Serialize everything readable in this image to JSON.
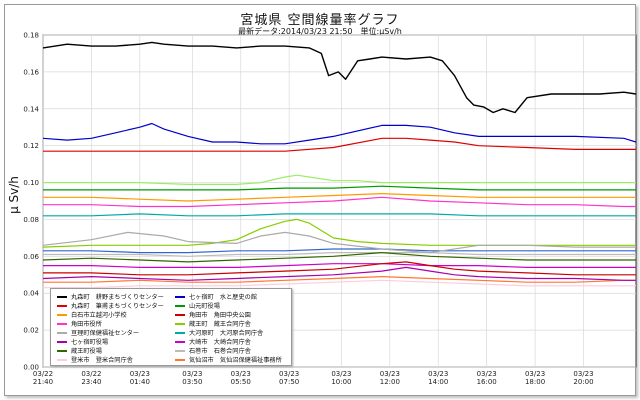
{
  "title": "宮城県 空間線量率グラフ",
  "subtitle": "最新データ:2014/03/23 21:50　単位:μSv/h",
  "chart_data": {
    "type": "line",
    "ylabel": "μ Sv/h",
    "ylim": [
      0,
      0.18
    ],
    "yticks": [
      "0.00",
      "0.02",
      "0.04",
      "0.06",
      "0.08",
      "0.10",
      "0.12",
      "0.14",
      "0.16",
      "0.18"
    ],
    "xlim": [
      0,
      24.5
    ],
    "xticks": [
      {
        "t": 0,
        "date": "03/22",
        "time": "21:40"
      },
      {
        "t": 2,
        "date": "03/22",
        "time": "23:40"
      },
      {
        "t": 4,
        "date": "03/23",
        "time": "01:40"
      },
      {
        "t": 6.17,
        "date": "03/23",
        "time": "03:50"
      },
      {
        "t": 8.17,
        "date": "03/23",
        "time": "05:50"
      },
      {
        "t": 10.17,
        "date": "03/23",
        "time": "07:50"
      },
      {
        "t": 12.33,
        "date": "03/23",
        "time": "10:00"
      },
      {
        "t": 14.33,
        "date": "03/23",
        "time": "12:00"
      },
      {
        "t": 16.33,
        "date": "03/23",
        "time": "14:00"
      },
      {
        "t": 18.33,
        "date": "03/23",
        "time": "16:00"
      },
      {
        "t": 20.33,
        "date": "03/23",
        "time": "18:00"
      },
      {
        "t": 22.33,
        "date": "03/23",
        "time": "20:00"
      }
    ],
    "grid": true,
    "legend_position": "bottom-left",
    "series": [
      {
        "name": "丸森町　耕野まちづくりセンター",
        "color": "#000000",
        "x": [
          0,
          1,
          2,
          3,
          4,
          4.5,
          5,
          6,
          7,
          8,
          9,
          10,
          11,
          11.5,
          11.8,
          12.2,
          12.5,
          13,
          13.5,
          14,
          15,
          16,
          16.5,
          17,
          17.5,
          17.8,
          18.2,
          18.6,
          19,
          19.5,
          20,
          21,
          22,
          23,
          24,
          24.5
        ],
        "values": [
          0.173,
          0.175,
          0.174,
          0.174,
          0.175,
          0.176,
          0.175,
          0.174,
          0.174,
          0.173,
          0.174,
          0.174,
          0.173,
          0.17,
          0.158,
          0.16,
          0.156,
          0.166,
          0.167,
          0.168,
          0.167,
          0.168,
          0.166,
          0.158,
          0.146,
          0.142,
          0.141,
          0.138,
          0.14,
          0.138,
          0.146,
          0.148,
          0.148,
          0.148,
          0.149,
          0.148
        ]
      },
      {
        "name": "丸森町　筆甫まちづくりセンター",
        "color": "#dd0000",
        "x": [
          0,
          2,
          4,
          6,
          8,
          10,
          12,
          14,
          15,
          16,
          17,
          18,
          20,
          22,
          24,
          24.5
        ],
        "values": [
          0.117,
          0.117,
          0.117,
          0.117,
          0.117,
          0.117,
          0.119,
          0.124,
          0.124,
          0.123,
          0.122,
          0.12,
          0.119,
          0.118,
          0.118,
          0.118
        ]
      },
      {
        "name": "白石市立越河小学校",
        "color": "#ff9900",
        "x": [
          0,
          2,
          4,
          6,
          8,
          10,
          12,
          14,
          16,
          18,
          20,
          22,
          24,
          24.5
        ],
        "values": [
          0.092,
          0.092,
          0.091,
          0.09,
          0.091,
          0.092,
          0.093,
          0.094,
          0.093,
          0.092,
          0.092,
          0.092,
          0.092,
          0.092
        ]
      },
      {
        "name": "角田市役所",
        "color": "#ff33cc",
        "x": [
          0,
          2,
          4,
          6,
          8,
          10,
          12,
          14,
          16,
          18,
          20,
          22,
          24,
          24.5
        ],
        "values": [
          0.088,
          0.088,
          0.087,
          0.087,
          0.088,
          0.089,
          0.09,
          0.092,
          0.09,
          0.089,
          0.088,
          0.088,
          0.087,
          0.087
        ]
      },
      {
        "name": "亘理町保健福祉センター",
        "color": "#aaaaaa",
        "x": [
          0,
          2,
          3.5,
          5,
          6,
          8,
          9,
          10,
          11,
          12,
          14,
          16,
          18,
          20,
          22,
          24,
          24.5
        ],
        "values": [
          0.066,
          0.069,
          0.073,
          0.071,
          0.068,
          0.067,
          0.071,
          0.073,
          0.071,
          0.067,
          0.064,
          0.062,
          0.066,
          0.066,
          0.065,
          0.065,
          0.065
        ]
      },
      {
        "name": "七ヶ宿町役場",
        "color": "#aa00aa",
        "x": [
          0,
          2,
          4,
          6,
          8,
          10,
          12,
          14,
          15,
          16,
          17,
          18,
          20,
          22,
          24,
          24.5
        ],
        "values": [
          0.048,
          0.049,
          0.048,
          0.047,
          0.048,
          0.049,
          0.05,
          0.052,
          0.054,
          0.052,
          0.05,
          0.049,
          0.048,
          0.048,
          0.047,
          0.047
        ]
      },
      {
        "name": "蔵王町役場",
        "color": "#336600",
        "x": [
          0,
          2,
          4,
          6,
          8,
          10,
          12,
          14,
          16,
          18,
          20,
          22,
          24,
          24.5
        ],
        "values": [
          0.058,
          0.059,
          0.058,
          0.057,
          0.058,
          0.059,
          0.06,
          0.062,
          0.06,
          0.059,
          0.058,
          0.058,
          0.058,
          0.058
        ]
      },
      {
        "name": "登米市　登米合同庁舎",
        "color": "#ffccdd",
        "x": [
          0,
          2,
          4,
          6,
          8,
          10,
          12,
          14,
          16,
          18,
          20,
          22,
          24,
          24.5
        ],
        "values": [
          0.043,
          0.043,
          0.044,
          0.044,
          0.044,
          0.045,
          0.046,
          0.047,
          0.046,
          0.045,
          0.044,
          0.044,
          0.044,
          0.044
        ]
      },
      {
        "name": "七ヶ宿町　水と歴史の館",
        "color": "#0000cc",
        "x": [
          0,
          1,
          2,
          3,
          4,
          4.5,
          5,
          6,
          7,
          8,
          9,
          10,
          11,
          12,
          14,
          15,
          16,
          17,
          18,
          20,
          22,
          24,
          24.5
        ],
        "values": [
          0.124,
          0.123,
          0.124,
          0.127,
          0.13,
          0.132,
          0.129,
          0.125,
          0.122,
          0.122,
          0.121,
          0.121,
          0.123,
          0.125,
          0.131,
          0.131,
          0.13,
          0.127,
          0.125,
          0.125,
          0.125,
          0.124,
          0.122
        ]
      },
      {
        "name": "山元町役場",
        "color": "#009900",
        "x": [
          0,
          2,
          4,
          6,
          8,
          10,
          12,
          14,
          16,
          18,
          20,
          22,
          24,
          24.5
        ],
        "values": [
          0.096,
          0.096,
          0.096,
          0.096,
          0.096,
          0.097,
          0.097,
          0.098,
          0.097,
          0.096,
          0.096,
          0.096,
          0.096,
          0.096
        ]
      },
      {
        "name": "角田市　角田中央公園",
        "color": "#cc0000",
        "x": [
          0,
          2,
          4,
          6,
          8,
          10,
          12,
          14,
          15,
          16,
          17,
          18,
          20,
          22,
          24,
          24.5
        ],
        "values": [
          0.051,
          0.051,
          0.05,
          0.05,
          0.051,
          0.052,
          0.053,
          0.056,
          0.057,
          0.055,
          0.053,
          0.052,
          0.051,
          0.05,
          0.05,
          0.05
        ]
      },
      {
        "name": "蔵王町　蔵王合同庁舎",
        "color": "#88cc00",
        "x": [
          0,
          2,
          4,
          6,
          7,
          8,
          9,
          10,
          10.5,
          11,
          11.5,
          12,
          13,
          14,
          16,
          18,
          20,
          22,
          24,
          24.5
        ],
        "values": [
          0.065,
          0.066,
          0.066,
          0.066,
          0.067,
          0.069,
          0.075,
          0.079,
          0.08,
          0.078,
          0.074,
          0.07,
          0.068,
          0.067,
          0.066,
          0.066,
          0.066,
          0.066,
          0.066,
          0.066
        ]
      },
      {
        "name": "大河原町　大河原合同庁舎",
        "color": "#00aaaa",
        "x": [
          0,
          2,
          4,
          6,
          8,
          10,
          12,
          14,
          16,
          18,
          20,
          22,
          24,
          24.5
        ],
        "values": [
          0.082,
          0.082,
          0.083,
          0.082,
          0.082,
          0.083,
          0.083,
          0.083,
          0.083,
          0.082,
          0.082,
          0.082,
          0.082,
          0.082
        ]
      },
      {
        "name": "大崎市　大崎合同庁舎",
        "color": "#cc00cc",
        "x": [
          0,
          2,
          4,
          6,
          8,
          10,
          12,
          14,
          16,
          18,
          20,
          22,
          24,
          24.5
        ],
        "values": [
          0.055,
          0.055,
          0.054,
          0.054,
          0.054,
          0.055,
          0.056,
          0.056,
          0.055,
          0.055,
          0.054,
          0.054,
          0.054,
          0.054
        ]
      },
      {
        "name": "石巻市　石巻合同庁舎",
        "color": "#bbbbbb",
        "x": [
          0,
          2,
          4,
          6,
          8,
          10,
          12,
          14,
          16,
          18,
          20,
          22,
          24,
          24.5
        ],
        "values": [
          0.061,
          0.061,
          0.061,
          0.06,
          0.061,
          0.061,
          0.062,
          0.062,
          0.062,
          0.061,
          0.061,
          0.061,
          0.061,
          0.061
        ]
      },
      {
        "name": "気仙沼市　気仙沼保健福祉事務所",
        "color": "#ff7733",
        "x": [
          0,
          2,
          4,
          6,
          8,
          10,
          12,
          14,
          16,
          18,
          20,
          22,
          24,
          24.5
        ],
        "values": [
          0.046,
          0.046,
          0.047,
          0.046,
          0.046,
          0.047,
          0.048,
          0.049,
          0.048,
          0.047,
          0.046,
          0.046,
          0.047,
          0.047
        ]
      },
      {
        "name": "",
        "color": "#99ee66",
        "x": [
          0,
          2,
          4,
          6,
          8,
          9,
          10,
          10.5,
          11,
          12,
          13,
          14,
          16,
          18,
          20,
          22,
          24,
          24.5
        ],
        "values": [
          0.1,
          0.1,
          0.1,
          0.099,
          0.099,
          0.1,
          0.103,
          0.104,
          0.103,
          0.101,
          0.101,
          0.1,
          0.1,
          0.1,
          0.1,
          0.1,
          0.1,
          0.1
        ]
      },
      {
        "name": "",
        "color": "#3366cc",
        "x": [
          0,
          2,
          4,
          6,
          8,
          10,
          12,
          14,
          16,
          18,
          20,
          22,
          24,
          24.5
        ],
        "values": [
          0.063,
          0.063,
          0.062,
          0.062,
          0.063,
          0.063,
          0.064,
          0.064,
          0.063,
          0.063,
          0.063,
          0.063,
          0.063,
          0.063
        ]
      }
    ]
  }
}
